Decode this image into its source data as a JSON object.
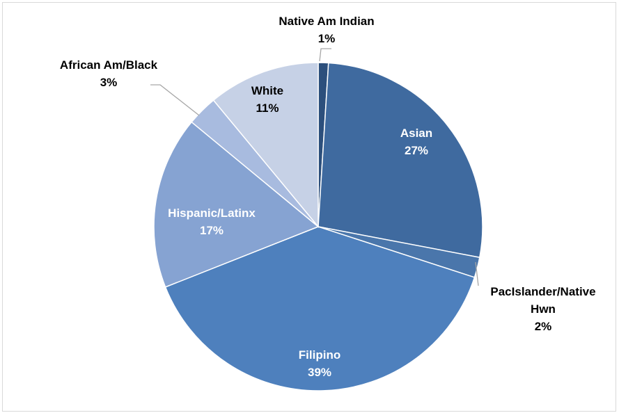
{
  "chart_data": {
    "type": "pie",
    "title": "",
    "start_angle_deg": 0,
    "direction": "clockwise",
    "legend": "none",
    "slices": [
      {
        "name": "Native Am Indian",
        "value": 1,
        "label_lines": [
          "Native Am Indian",
          "1%"
        ],
        "color": "#2c4f7c",
        "label_color": "#000000"
      },
      {
        "name": "Asian",
        "value": 27,
        "label_lines": [
          "Asian",
          "27%"
        ],
        "color": "#3f6a9f",
        "label_color": "#ffffff"
      },
      {
        "name": "PacIslander/Native Hwn",
        "value": 2,
        "label_lines": [
          "PacIslander/Native",
          "Hwn",
          "2%"
        ],
        "color": "#4a76ab",
        "label_color": "#000000"
      },
      {
        "name": "Filipino",
        "value": 39,
        "label_lines": [
          "Filipino",
          "39%"
        ],
        "color": "#4e80bd",
        "label_color": "#ffffff"
      },
      {
        "name": "Hispanic/Latinx",
        "value": 17,
        "label_lines": [
          "Hispanic/Latinx",
          "17%"
        ],
        "color": "#86a3d2",
        "label_color": "#ffffff"
      },
      {
        "name": "African Am/Black",
        "value": 3,
        "label_lines": [
          "African Am/Black",
          "3%"
        ],
        "color": "#a8bbdf",
        "label_color": "#000000"
      },
      {
        "name": "White",
        "value": 11,
        "label_lines": [
          "White",
          "11%"
        ],
        "color": "#c6d1e6",
        "label_color": "#000000"
      }
    ]
  }
}
